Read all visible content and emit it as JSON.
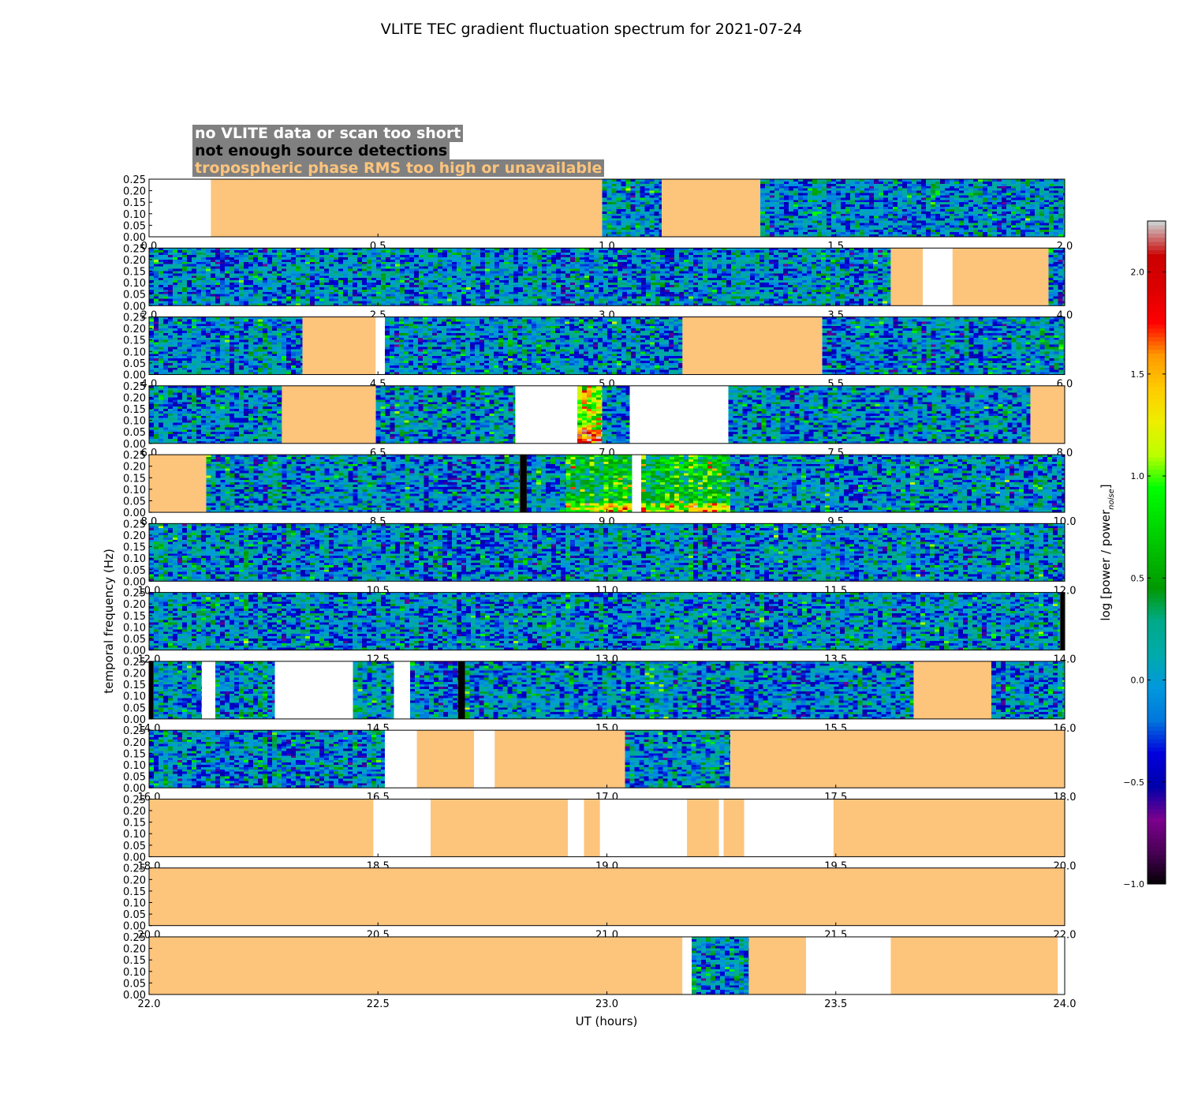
{
  "title": "VLITE TEC gradient fluctuation spectrum for 2021-07-24",
  "legend": [
    {
      "text": "no VLITE data or scan too short",
      "color": "#ffffff"
    },
    {
      "text": "not enough source detections",
      "color": "#000000"
    },
    {
      "text": "tropospheric phase RMS too high or unavailable",
      "color": "#fdc47c"
    }
  ],
  "chart_data": {
    "type": "heatmap",
    "title": "VLITE TEC gradient fluctuation spectrum for 2021-07-24",
    "xlabel": "UT (hours)",
    "ylabel": "temporal frequency (Hz)",
    "colorbar_label": "log [power / power_noise]",
    "colorbar_range": [
      -1.0,
      2.25
    ],
    "colorbar_ticks": [
      "−1.0",
      "−0.5",
      "0.0",
      "0.5",
      "1.0",
      "1.5",
      "2.0"
    ],
    "colormap": "nipy_spectral",
    "yticks": [
      "0.00",
      "0.05",
      "0.10",
      "0.15",
      "0.20",
      "0.25"
    ],
    "ylim": [
      0,
      0.25
    ],
    "hours_per_panel": 2,
    "state_colors": {
      "nodata": "#ffffff",
      "nodet": "#000000",
      "trop": "#fdc47c"
    },
    "panels": [
      {
        "range": [
          0,
          2
        ],
        "xticks": [
          "0.0",
          "0.5",
          "1.0",
          "1.5",
          "2.0"
        ],
        "segments": [
          [
            "nodata",
            0.0,
            0.135
          ],
          [
            "trop",
            0.135,
            0.99
          ],
          [
            "data",
            0.99,
            1.12
          ],
          [
            "trop",
            1.12,
            1.335
          ],
          [
            "data",
            1.335,
            2.0
          ]
        ]
      },
      {
        "range": [
          2,
          4
        ],
        "xticks": [
          "2.0",
          "2.5",
          "3.0",
          "3.5",
          "4.0"
        ],
        "segments": [
          [
            "data",
            2.0,
            3.62
          ],
          [
            "trop",
            3.62,
            3.69
          ],
          [
            "nodata",
            3.69,
            3.755
          ],
          [
            "trop",
            3.755,
            3.965
          ],
          [
            "data",
            3.965,
            4.0
          ]
        ]
      },
      {
        "range": [
          4,
          6
        ],
        "xticks": [
          "4.0",
          "4.5",
          "5.0",
          "5.5",
          "6.0"
        ],
        "segments": [
          [
            "data",
            4.0,
            4.335
          ],
          [
            "trop",
            4.335,
            4.495
          ],
          [
            "nodata",
            4.495,
            4.515
          ],
          [
            "data",
            4.515,
            5.165
          ],
          [
            "trop",
            5.165,
            5.47
          ],
          [
            "data",
            5.47,
            6.0
          ]
        ]
      },
      {
        "range": [
          6,
          8
        ],
        "xticks": [
          "6.0",
          "6.5",
          "7.0",
          "7.5",
          "8.0"
        ],
        "segments": [
          [
            "data",
            6.0,
            6.29
          ],
          [
            "trop",
            6.29,
            6.495
          ],
          [
            "data",
            6.495,
            6.8
          ],
          [
            "nodata",
            6.8,
            6.935
          ],
          [
            "hot",
            6.935,
            6.99
          ],
          [
            "data",
            6.99,
            7.05
          ],
          [
            "nodata",
            7.05,
            7.265
          ],
          [
            "data",
            7.265,
            7.925
          ],
          [
            "trop",
            7.925,
            8.0
          ]
        ]
      },
      {
        "range": [
          8,
          10
        ],
        "xticks": [
          "8.0",
          "8.5",
          "9.0",
          "9.5",
          "10.0"
        ],
        "segments": [
          [
            "trop",
            8.0,
            8.125
          ],
          [
            "data",
            8.125,
            8.81
          ],
          [
            "nodet",
            8.81,
            8.825
          ],
          [
            "data",
            8.825,
            8.91
          ],
          [
            "warm",
            8.91,
            9.055
          ],
          [
            "nodata",
            9.055,
            9.075
          ],
          [
            "warm",
            9.075,
            9.27
          ],
          [
            "data",
            9.27,
            10.0
          ]
        ]
      },
      {
        "range": [
          10,
          12
        ],
        "xticks": [
          "10.0",
          "10.5",
          "11.0",
          "11.5",
          "12.0"
        ],
        "segments": [
          [
            "data",
            10.0,
            12.0
          ]
        ]
      },
      {
        "range": [
          12,
          14
        ],
        "xticks": [
          "12.0",
          "12.5",
          "13.0",
          "13.5",
          "14.0"
        ],
        "segments": [
          [
            "data",
            12.0,
            13.99
          ],
          [
            "nodet",
            13.99,
            14.0
          ]
        ]
      },
      {
        "range": [
          14,
          16
        ],
        "xticks": [
          "14.0",
          "14.5",
          "15.0",
          "15.5",
          "16.0"
        ],
        "segments": [
          [
            "nodet",
            14.0,
            14.01
          ],
          [
            "data",
            14.01,
            14.115
          ],
          [
            "nodata",
            14.115,
            14.145
          ],
          [
            "data",
            14.145,
            14.275
          ],
          [
            "nodata",
            14.275,
            14.445
          ],
          [
            "data",
            14.445,
            14.535
          ],
          [
            "nodata",
            14.535,
            14.57
          ],
          [
            "data",
            14.57,
            14.675
          ],
          [
            "nodet",
            14.675,
            14.69
          ],
          [
            "data",
            14.69,
            15.67
          ],
          [
            "trop",
            15.67,
            15.84
          ],
          [
            "data",
            15.84,
            16.0
          ]
        ]
      },
      {
        "range": [
          16,
          18
        ],
        "xticks": [
          "16.0",
          "16.5",
          "17.0",
          "17.5",
          "18.0"
        ],
        "segments": [
          [
            "data",
            16.0,
            16.515
          ],
          [
            "nodata",
            16.515,
            16.585
          ],
          [
            "trop",
            16.585,
            16.71
          ],
          [
            "nodata",
            16.71,
            16.755
          ],
          [
            "trop",
            16.755,
            17.04
          ],
          [
            "data",
            17.04,
            17.27
          ],
          [
            "trop",
            17.27,
            18.0
          ]
        ]
      },
      {
        "range": [
          18,
          20
        ],
        "xticks": [
          "18.0",
          "18.5",
          "19.0",
          "19.5",
          "20.0"
        ],
        "segments": [
          [
            "trop",
            18.0,
            18.49
          ],
          [
            "nodata",
            18.49,
            18.615
          ],
          [
            "trop",
            18.615,
            18.915
          ],
          [
            "nodata",
            18.915,
            18.95
          ],
          [
            "trop",
            18.95,
            18.985
          ],
          [
            "nodata",
            18.985,
            19.175
          ],
          [
            "trop",
            19.175,
            19.245
          ],
          [
            "nodata",
            19.245,
            19.255
          ],
          [
            "trop",
            19.255,
            19.3
          ],
          [
            "nodata",
            19.3,
            19.495
          ],
          [
            "trop",
            19.495,
            20.0
          ]
        ]
      },
      {
        "range": [
          20,
          22
        ],
        "xticks": [
          "20.0",
          "20.5",
          "21.0",
          "21.5",
          "22.0"
        ],
        "segments": [
          [
            "trop",
            20.0,
            22.0
          ]
        ]
      },
      {
        "range": [
          22,
          24
        ],
        "xticks": [
          "22.0",
          "22.5",
          "23.0",
          "23.5",
          "24.0"
        ],
        "segments": [
          [
            "trop",
            22.0,
            23.165
          ],
          [
            "nodata",
            23.165,
            23.185
          ],
          [
            "data",
            23.185,
            23.31
          ],
          [
            "trop",
            23.31,
            23.435
          ],
          [
            "nodata",
            23.435,
            23.62
          ],
          [
            "trop",
            23.62,
            23.985
          ],
          [
            "nodata",
            23.985,
            24.0
          ]
        ]
      }
    ]
  }
}
